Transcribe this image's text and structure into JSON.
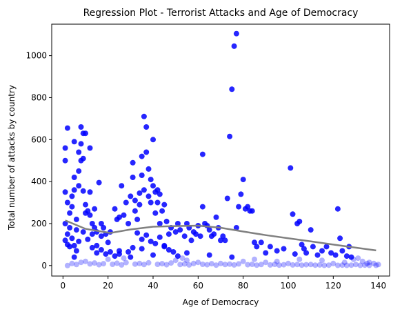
{
  "chart_data": {
    "type": "scatter",
    "title": "Regression Plot - Terrorist Attacks and Age of Democracy",
    "xlabel": "Age of Democracy",
    "ylabel": "Total number of attacks by country",
    "xlim": [
      -5,
      145
    ],
    "ylim": [
      -50,
      1150
    ],
    "xticks": [
      0,
      20,
      40,
      60,
      80,
      100,
      120,
      140
    ],
    "yticks": [
      0,
      200,
      400,
      600,
      800,
      1000
    ],
    "grid": false,
    "point_color": "#0000ff",
    "trend_color": "#808080",
    "series": [
      {
        "kind": "scatter",
        "values": [
          [
            1,
            500
          ],
          [
            1,
            560
          ],
          [
            2,
            655
          ],
          [
            1,
            350
          ],
          [
            2,
            300
          ],
          [
            3,
            250
          ],
          [
            1,
            200
          ],
          [
            2,
            150
          ],
          [
            1,
            120
          ],
          [
            3,
            90
          ],
          [
            4,
            330
          ],
          [
            4,
            280
          ],
          [
            5,
            590
          ],
          [
            5,
            420
          ],
          [
            5,
            360
          ],
          [
            6,
            220
          ],
          [
            6,
            170
          ],
          [
            7,
            540
          ],
          [
            7,
            450
          ],
          [
            7,
            380
          ],
          [
            8,
            660
          ],
          [
            8,
            580
          ],
          [
            8,
            500
          ],
          [
            9,
            630
          ],
          [
            9,
            510
          ],
          [
            9,
            355
          ],
          [
            10,
            630
          ],
          [
            10,
            290
          ],
          [
            10,
            250
          ],
          [
            11,
            260
          ],
          [
            12,
            560
          ],
          [
            12,
            350
          ],
          [
            12,
            240
          ],
          [
            13,
            200
          ],
          [
            13,
            150
          ],
          [
            14,
            270
          ],
          [
            14,
            180
          ],
          [
            15,
            160
          ],
          [
            16,
            395
          ],
          [
            17,
            200
          ],
          [
            17,
            140
          ],
          [
            18,
            180
          ],
          [
            19,
            150
          ],
          [
            20,
            110
          ],
          [
            21,
            160
          ],
          [
            23,
            270
          ],
          [
            24,
            220
          ],
          [
            25,
            230
          ],
          [
            26,
            380
          ],
          [
            27,
            240
          ],
          [
            28,
            300
          ],
          [
            29,
            200
          ],
          [
            30,
            330
          ],
          [
            31,
            420
          ],
          [
            31,
            490
          ],
          [
            32,
            310
          ],
          [
            32,
            260
          ],
          [
            33,
            220
          ],
          [
            34,
            345
          ],
          [
            34,
            290
          ],
          [
            35,
            520
          ],
          [
            35,
            430
          ],
          [
            36,
            710
          ],
          [
            36,
            360
          ],
          [
            37,
            660
          ],
          [
            37,
            540
          ],
          [
            38,
            460
          ],
          [
            38,
            330
          ],
          [
            39,
            410
          ],
          [
            39,
            300
          ],
          [
            40,
            600
          ],
          [
            40,
            380
          ],
          [
            41,
            350
          ],
          [
            41,
            250
          ],
          [
            42,
            360
          ],
          [
            42,
            300
          ],
          [
            43,
            340
          ],
          [
            43,
            200
          ],
          [
            44,
            260
          ],
          [
            45,
            290
          ],
          [
            46,
            210
          ],
          [
            47,
            150
          ],
          [
            48,
            180
          ],
          [
            50,
            160
          ],
          [
            51,
            200
          ],
          [
            52,
            170
          ],
          [
            54,
            140
          ],
          [
            55,
            200
          ],
          [
            56,
            180
          ],
          [
            57,
            120
          ],
          [
            58,
            160
          ],
          [
            59,
            150
          ],
          [
            60,
            190
          ],
          [
            61,
            140
          ],
          [
            62,
            530
          ],
          [
            62,
            280
          ],
          [
            63,
            200
          ],
          [
            64,
            190
          ],
          [
            65,
            170
          ],
          [
            66,
            140
          ],
          [
            67,
            150
          ],
          [
            68,
            230
          ],
          [
            69,
            180
          ],
          [
            70,
            120
          ],
          [
            71,
            140
          ],
          [
            72,
            120
          ],
          [
            73,
            320
          ],
          [
            74,
            615
          ],
          [
            75,
            840
          ],
          [
            76,
            1045
          ],
          [
            77,
            1105
          ],
          [
            77,
            180
          ],
          [
            78,
            280
          ],
          [
            79,
            340
          ],
          [
            80,
            410
          ],
          [
            81,
            270
          ],
          [
            82,
            280
          ],
          [
            83,
            260
          ],
          [
            84,
            260
          ],
          [
            85,
            110
          ],
          [
            86,
            90
          ],
          [
            88,
            110
          ],
          [
            90,
            60
          ],
          [
            92,
            90
          ],
          [
            95,
            70
          ],
          [
            98,
            80
          ],
          [
            101,
            465
          ],
          [
            102,
            245
          ],
          [
            103,
            55
          ],
          [
            104,
            200
          ],
          [
            105,
            210
          ],
          [
            106,
            100
          ],
          [
            107,
            80
          ],
          [
            108,
            60
          ],
          [
            110,
            170
          ],
          [
            111,
            90
          ],
          [
            113,
            50
          ],
          [
            115,
            70
          ],
          [
            117,
            90
          ],
          [
            119,
            60
          ],
          [
            121,
            50
          ],
          [
            122,
            270
          ],
          [
            123,
            130
          ],
          [
            124,
            70
          ],
          [
            126,
            45
          ],
          [
            127,
            90
          ],
          [
            128,
            40
          ],
          [
            129,
            30
          ],
          [
            131,
            35
          ],
          [
            133,
            20
          ],
          [
            136,
            15
          ],
          [
            138,
            10
          ],
          [
            140,
            5
          ],
          [
            10,
            20
          ],
          [
            20,
            30
          ],
          [
            30,
            40
          ],
          [
            40,
            50
          ],
          [
            50,
            25
          ],
          [
            60,
            15
          ],
          [
            70,
            10
          ],
          [
            80,
            20
          ],
          [
            90,
            15
          ],
          [
            100,
            10
          ],
          [
            110,
            5
          ],
          [
            120,
            10
          ],
          [
            130,
            5
          ],
          [
            5,
            40
          ],
          [
            15,
            60
          ],
          [
            25,
            70
          ],
          [
            35,
            80
          ],
          [
            45,
            90
          ],
          [
            55,
            60
          ],
          [
            65,
            50
          ],
          [
            75,
            40
          ],
          [
            85,
            30
          ],
          [
            95,
            20
          ],
          [
            105,
            30
          ],
          [
            115,
            25
          ],
          [
            125,
            15
          ],
          [
            135,
            10
          ],
          [
            2,
            0
          ],
          [
            4,
            10
          ],
          [
            6,
            5
          ],
          [
            8,
            15
          ],
          [
            12,
            8
          ],
          [
            14,
            12
          ],
          [
            16,
            4
          ],
          [
            18,
            9
          ],
          [
            22,
            6
          ],
          [
            24,
            11
          ],
          [
            26,
            3
          ],
          [
            28,
            14
          ],
          [
            32,
            7
          ],
          [
            34,
            10
          ],
          [
            36,
            5
          ],
          [
            38,
            13
          ],
          [
            42,
            6
          ],
          [
            44,
            9
          ],
          [
            46,
            4
          ],
          [
            48,
            12
          ],
          [
            52,
            5
          ],
          [
            54,
            8
          ],
          [
            56,
            3
          ],
          [
            58,
            10
          ],
          [
            62,
            6
          ],
          [
            64,
            4
          ],
          [
            66,
            9
          ],
          [
            68,
            2
          ],
          [
            72,
            5
          ],
          [
            74,
            7
          ],
          [
            76,
            3
          ],
          [
            78,
            8
          ],
          [
            82,
            4
          ],
          [
            84,
            6
          ],
          [
            86,
            2
          ],
          [
            88,
            5
          ],
          [
            92,
            3
          ],
          [
            94,
            6
          ],
          [
            96,
            2
          ],
          [
            98,
            4
          ],
          [
            102,
            3
          ],
          [
            104,
            5
          ],
          [
            106,
            2
          ],
          [
            108,
            4
          ],
          [
            112,
            2
          ],
          [
            114,
            3
          ],
          [
            116,
            1
          ],
          [
            118,
            2
          ],
          [
            122,
            1
          ],
          [
            124,
            2
          ],
          [
            126,
            1
          ],
          [
            128,
            2
          ],
          [
            132,
            1
          ],
          [
            134,
            2
          ],
          [
            136,
            1
          ],
          [
            139,
            1
          ],
          [
            2,
            100
          ],
          [
            3,
            180
          ],
          [
            4,
            130
          ],
          [
            5,
            95
          ],
          [
            6,
            70
          ],
          [
            7,
            115
          ],
          [
            9,
            160
          ],
          [
            11,
            125
          ],
          [
            13,
            85
          ],
          [
            15,
            95
          ],
          [
            17,
            75
          ],
          [
            19,
            55
          ],
          [
            21,
            65
          ],
          [
            23,
            45
          ],
          [
            25,
            55
          ],
          [
            27,
            35
          ],
          [
            29,
            65
          ],
          [
            31,
            85
          ],
          [
            33,
            155
          ],
          [
            35,
            125
          ],
          [
            37,
            145
          ],
          [
            39,
            115
          ],
          [
            41,
            105
          ],
          [
            43,
            135
          ],
          [
            45,
            95
          ],
          [
            47,
            75
          ],
          [
            49,
            65
          ],
          [
            51,
            45
          ],
          [
            53,
            35
          ],
          [
            55,
            25
          ]
        ]
      },
      {
        "kind": "line",
        "values": [
          [
            1,
            215
          ],
          [
            10,
            175
          ],
          [
            21,
            155
          ],
          [
            30,
            172
          ],
          [
            40,
            185
          ],
          [
            50,
            188
          ],
          [
            60,
            190
          ],
          [
            70,
            180
          ],
          [
            80,
            162
          ],
          [
            90,
            145
          ],
          [
            100,
            130
          ],
          [
            110,
            115
          ],
          [
            120,
            100
          ],
          [
            130,
            85
          ],
          [
            139,
            72
          ]
        ]
      }
    ]
  }
}
